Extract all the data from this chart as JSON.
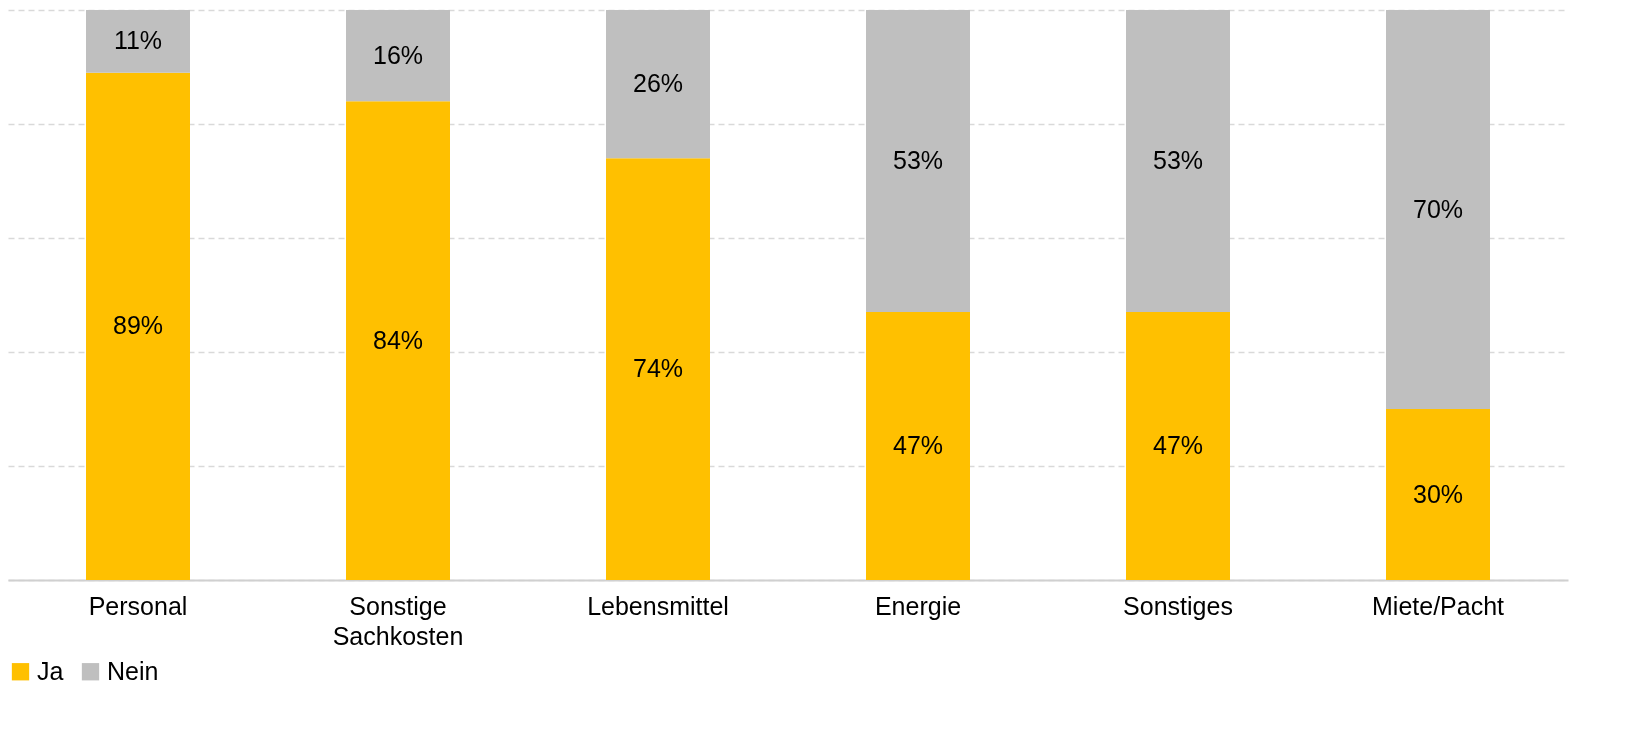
{
  "chart_data": {
    "type": "bar",
    "stacked": true,
    "categories": [
      "Personal",
      "Sonstige Sachkosten",
      "Lebensmittel",
      "Energie",
      "Sonstiges",
      "Miete/Pacht"
    ],
    "series": [
      {
        "name": "Ja",
        "color": "#ffc000",
        "values": [
          89,
          84,
          74,
          47,
          47,
          30
        ],
        "value_labels": [
          "89%",
          "84%",
          "74%",
          "47%",
          "47%",
          "30%"
        ]
      },
      {
        "name": "Nein",
        "color": "#bfbfbf",
        "values": [
          11,
          16,
          26,
          53,
          53,
          70
        ],
        "value_labels": [
          "11%",
          "16%",
          "26%",
          "53%",
          "53%",
          "70%"
        ]
      }
    ],
    "ylim": [
      0,
      100
    ],
    "yticks": [
      {
        "value": 0,
        "label": null
      },
      {
        "value": 20,
        "label": null
      },
      {
        "value": 40,
        "label": null
      },
      {
        "value": 60,
        "label": null
      },
      {
        "value": 80,
        "label": null
      },
      {
        "value": 100,
        "label": null
      }
    ],
    "tick_labels": "x",
    "grid": "y",
    "legend": "bottom"
  }
}
